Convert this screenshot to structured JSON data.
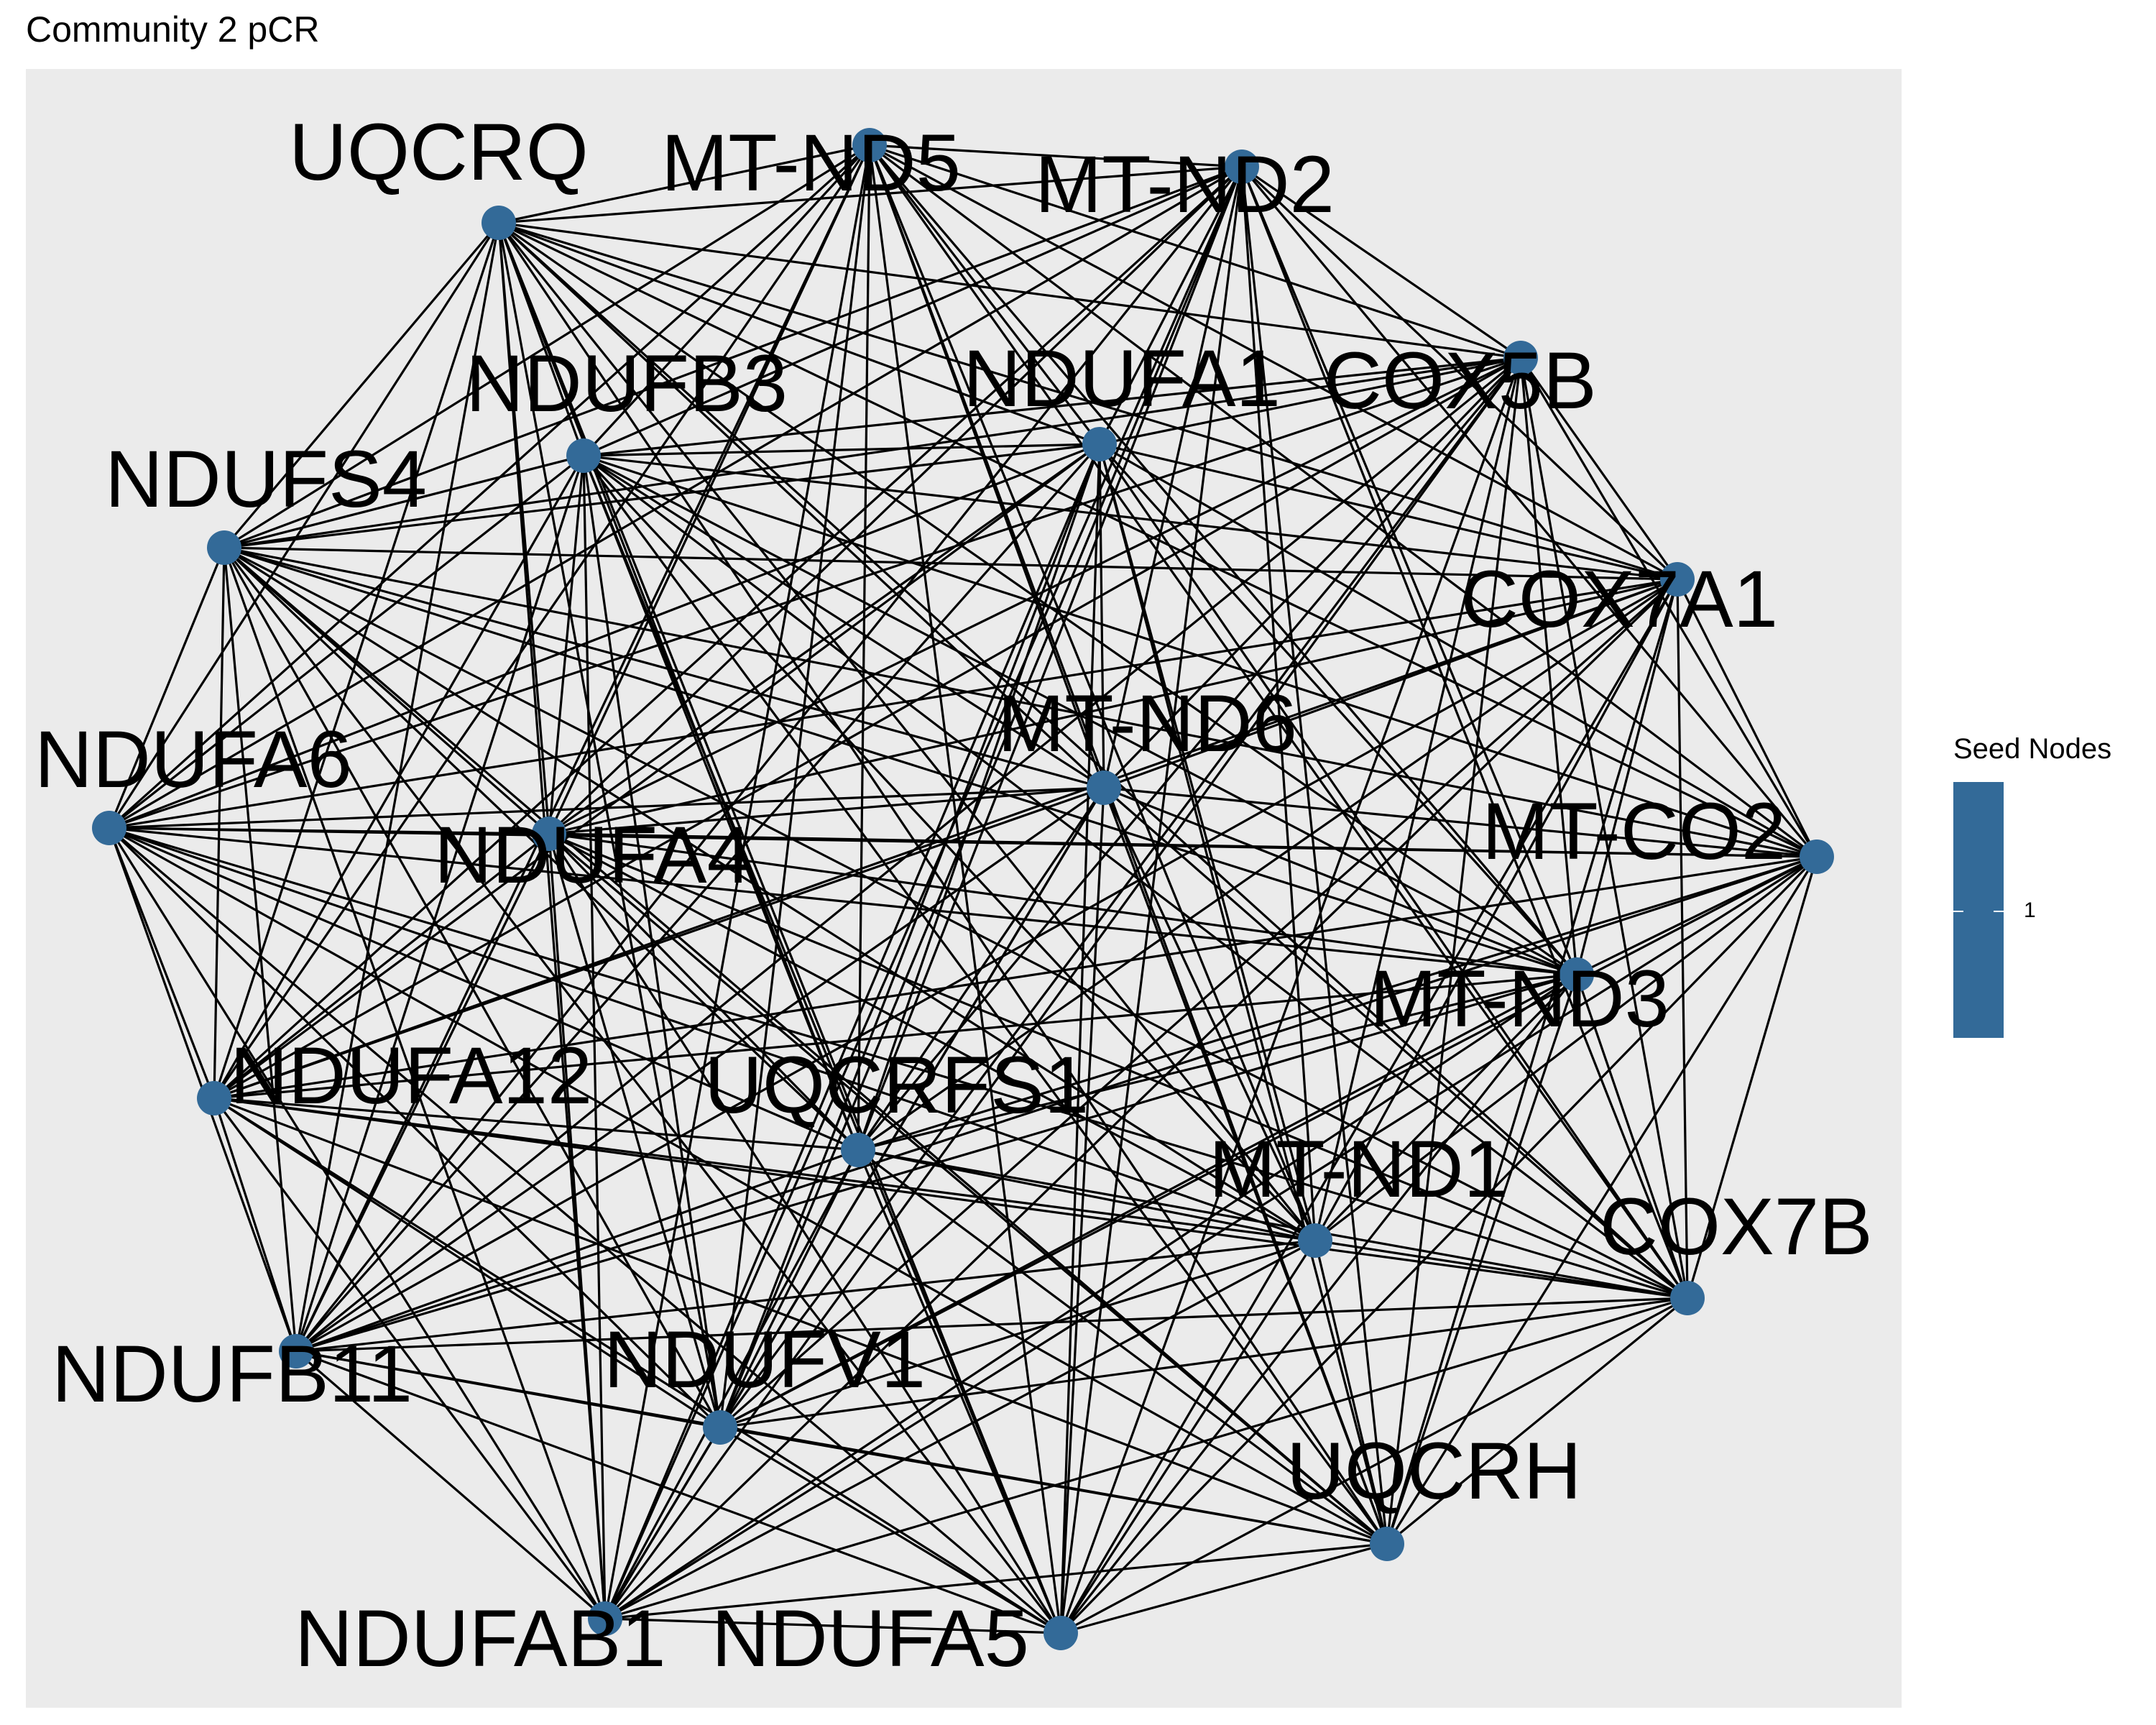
{
  "title": "Community 2 pCR",
  "colors": {
    "panel": "#ebebeb",
    "node": "#336a98",
    "edge": "#000000",
    "text": "#000000"
  },
  "legend": {
    "title": "Seed Nodes",
    "labels": [
      "1"
    ]
  },
  "nodes": [
    {
      "id": "MT-ND5",
      "label": "MT-ND5"
    },
    {
      "id": "MT-ND2",
      "label": "MT-ND2"
    },
    {
      "id": "UQCRQ",
      "label": "UQCRQ"
    },
    {
      "id": "COX5B",
      "label": "COX5B"
    },
    {
      "id": "NDUFA1",
      "label": "NDUFA1"
    },
    {
      "id": "NDUFB3",
      "label": "NDUFB3"
    },
    {
      "id": "NDUFS4",
      "label": "NDUFS4"
    },
    {
      "id": "COX7A1",
      "label": "COX7A1"
    },
    {
      "id": "MT-ND6",
      "label": "MT-ND6"
    },
    {
      "id": "NDUFA6",
      "label": "NDUFA6"
    },
    {
      "id": "NDUFA4",
      "label": "NDUFA4"
    },
    {
      "id": "MT-CO2",
      "label": "MT-CO2"
    },
    {
      "id": "MT-ND3",
      "label": "MT-ND3"
    },
    {
      "id": "NDUFA12",
      "label": "NDUFA12"
    },
    {
      "id": "UQCRFS1",
      "label": "UQCRFS1"
    },
    {
      "id": "MT-ND1",
      "label": "MT-ND1"
    },
    {
      "id": "COX7B",
      "label": "COX7B"
    },
    {
      "id": "NDUFB11",
      "label": "NDUFB11"
    },
    {
      "id": "NDUFV1",
      "label": "NDUFV1"
    },
    {
      "id": "UQCRH",
      "label": "UQCRH"
    },
    {
      "id": "NDUFAB1",
      "label": "NDUFAB1"
    },
    {
      "id": "NDUFA5",
      "label": "NDUFA5"
    }
  ],
  "edges": "complete"
}
